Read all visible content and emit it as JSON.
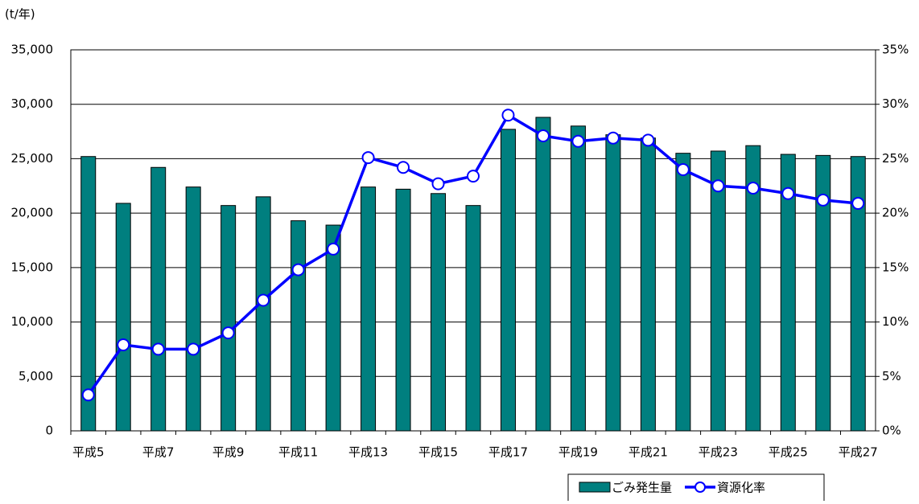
{
  "chart_data": {
    "type": "bar_line",
    "y_unit_label": "(t/年)",
    "categories": [
      "平成5",
      null,
      "平成7",
      null,
      "平成9",
      null,
      "平成11",
      null,
      "平成13",
      null,
      "平成15",
      null,
      "平成17",
      null,
      "平成19",
      null,
      "平成21",
      null,
      "平成23",
      null,
      "平成25",
      null,
      "平成27"
    ],
    "series": [
      {
        "name": "ごみ発生量",
        "type": "bar",
        "axis": "y",
        "color": "#007f7f",
        "values": [
          25200,
          20900,
          24200,
          22400,
          20700,
          21500,
          19300,
          18900,
          22400,
          22200,
          21800,
          20700,
          27700,
          28800,
          28000,
          27200,
          26900,
          25500,
          25700,
          26200,
          25400,
          25300,
          25200
        ]
      },
      {
        "name": "資源化率",
        "type": "line",
        "axis": "y2",
        "color": "#0000ff",
        "values": [
          3.3,
          7.9,
          7.5,
          7.5,
          9.0,
          12.0,
          14.8,
          16.7,
          25.1,
          24.2,
          22.7,
          23.4,
          29.0,
          27.1,
          26.6,
          26.9,
          26.7,
          24.0,
          22.5,
          22.3,
          21.8,
          21.2,
          20.9
        ]
      }
    ],
    "ylim": [
      0,
      35000
    ],
    "yticks": [
      0,
      {
        "value": 5000,
        "label": "5,000"
      },
      {
        "value": 10000,
        "label": "10,000"
      },
      {
        "value": 15000,
        "label": "15,000"
      },
      {
        "value": 20000,
        "label": "20,000"
      },
      {
        "value": 25000,
        "label": "25,000"
      },
      {
        "value": 30000,
        "label": "30,000"
      },
      {
        "value": 35000,
        "label": "35,000"
      }
    ],
    "y2lim": [
      0,
      35
    ],
    "y2ticks": [
      {
        "value": 0,
        "label": "0%"
      },
      {
        "value": 5,
        "label": "5%"
      },
      {
        "value": 10,
        "label": "10%"
      },
      {
        "value": 15,
        "label": "15%"
      },
      {
        "value": 20,
        "label": "20%"
      },
      {
        "value": 25,
        "label": "25%"
      },
      {
        "value": 30,
        "label": "30%"
      },
      {
        "value": 35,
        "label": "35%"
      }
    ],
    "grid": true,
    "legend": "bottom-right"
  }
}
